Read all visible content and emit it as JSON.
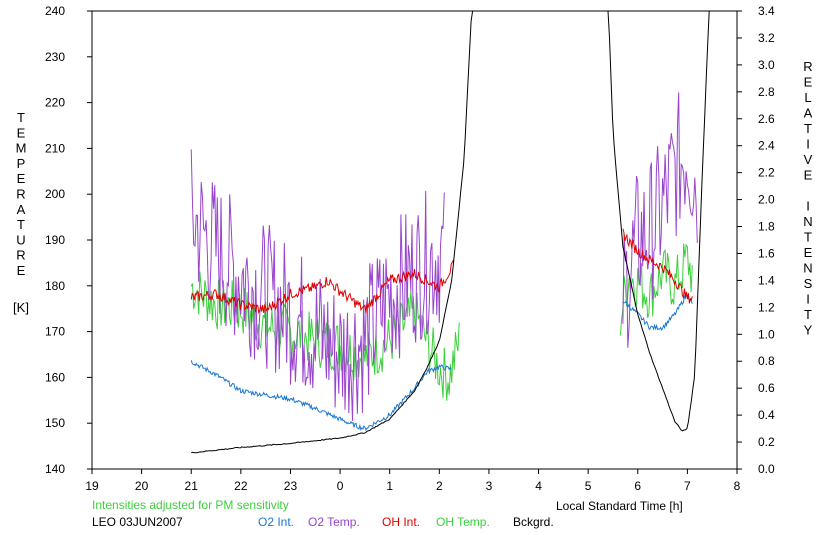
{
  "chart_data": {
    "type": "line",
    "xlabel": "Local Standard Time [h]",
    "x_ticks": [
      "19",
      "20",
      "21",
      "22",
      "23",
      "0",
      "1",
      "2",
      "3",
      "4",
      "5",
      "6",
      "7",
      "8"
    ],
    "x_range": [
      19,
      32
    ],
    "left_axis": {
      "label_letters": [
        "T",
        "E",
        "M",
        "P",
        "E",
        "R",
        "A",
        "T",
        "U",
        "R",
        "E"
      ],
      "unit": "[K]",
      "range": [
        140,
        240
      ],
      "ticks": [
        "140",
        "150",
        "160",
        "170",
        "180",
        "190",
        "200",
        "210",
        "220",
        "230",
        "240"
      ]
    },
    "right_axis": {
      "label_letters": [
        "R",
        "E",
        "L",
        "A",
        "T",
        "I",
        "V",
        "E",
        "",
        "I",
        "N",
        "T",
        "E",
        "N",
        "S",
        "I",
        "T",
        "Y"
      ],
      "range": [
        0,
        3.4
      ],
      "ticks": [
        "0.0",
        "0.2",
        "0.4",
        "0.6",
        "0.8",
        "1.0",
        "1.2",
        "1.4",
        "1.6",
        "1.8",
        "2.0",
        "2.2",
        "2.4",
        "2.6",
        "2.8",
        "3.0",
        "3.2",
        "3.4"
      ]
    },
    "note": "Intensities adjusted for PM sensitivity",
    "station": "LEO 03JUN2007",
    "series": [
      {
        "name": "O2 Int.",
        "color": "#1a78d2",
        "axis": "right",
        "segments": [
          {
            "x": [
              21.0,
              21.5,
              22.0,
              22.5,
              23.0,
              23.5,
              24.0,
              24.25,
              24.5,
              25.0,
              25.5,
              25.75,
              26.0,
              26.25
            ],
            "y": [
              0.8,
              0.7,
              0.58,
              0.55,
              0.52,
              0.45,
              0.37,
              0.33,
              0.3,
              0.4,
              0.6,
              0.72,
              0.76,
              0.74
            ]
          },
          {
            "x": [
              29.7,
              30.0,
              30.25,
              30.5,
              30.75,
              31.0,
              31.1
            ],
            "y": [
              1.25,
              1.15,
              1.05,
              1.05,
              1.15,
              1.3,
              1.22
            ]
          }
        ]
      },
      {
        "name": "O2 Temp.",
        "color": "#9944cc",
        "axis": "left",
        "segments": [
          {
            "x": [
              21.0,
              21.5,
              22.0,
              22.5,
              23.0,
              23.5,
              24.0,
              24.5,
              25.0,
              25.5,
              26.0,
              26.1
            ],
            "y": [
              195,
              188,
              182,
              178,
              174,
              170,
              165,
              168,
              178,
              183,
              187,
              186
            ]
          },
          {
            "x": [
              29.7,
              30.0,
              30.25,
              30.5,
              30.75,
              31.0,
              31.2
            ],
            "y": [
              178,
              190,
              192,
              197,
              205,
              210,
              202
            ]
          }
        ]
      },
      {
        "name": "OH Int.",
        "color": "#dd0000",
        "axis": "right",
        "segments": [
          {
            "x": [
              21.0,
              21.5,
              22.0,
              22.5,
              23.0,
              23.5,
              23.75,
              24.0,
              24.5,
              25.0,
              25.5,
              26.0,
              26.3
            ],
            "y": [
              1.27,
              1.3,
              1.22,
              1.18,
              1.3,
              1.35,
              1.4,
              1.32,
              1.18,
              1.4,
              1.45,
              1.35,
              1.52
            ]
          },
          {
            "x": [
              29.7,
              29.8,
              30.0,
              30.25,
              30.5,
              30.75,
              31.0,
              31.1
            ],
            "y": [
              1.75,
              1.7,
              1.62,
              1.55,
              1.5,
              1.4,
              1.27,
              1.27
            ]
          }
        ]
      },
      {
        "name": "OH Temp.",
        "color": "#3ccf3c",
        "axis": "left",
        "segments": [
          {
            "x": [
              21.0,
              21.5,
              22.0,
              22.5,
              23.0,
              23.5,
              24.0,
              24.5,
              25.0,
              25.5,
              26.0,
              26.2,
              26.4
            ],
            "y": [
              180,
              176,
              175,
              171,
              170,
              168,
              167,
              164,
              168,
              174,
              162,
              160,
              168
            ]
          },
          {
            "x": [
              29.65,
              29.8,
              30.0,
              30.25,
              30.5,
              30.75,
              31.0,
              31.1
            ],
            "y": [
              173,
              182,
              181,
              178,
              183,
              180,
              186,
              182
            ]
          }
        ]
      },
      {
        "name": "Bckgrd.",
        "color": "#000000",
        "axis": "right",
        "segments": [
          {
            "x": [
              21.0,
              22.0,
              23.0,
              24.0,
              24.5,
              25.0,
              25.5,
              25.75,
              26.0,
              26.25,
              26.5,
              26.65,
              26.7
            ],
            "y": [
              0.12,
              0.16,
              0.19,
              0.23,
              0.27,
              0.37,
              0.58,
              0.75,
              0.95,
              1.4,
              2.3,
              3.4,
              3.5
            ]
          },
          {
            "x": [
              29.4,
              29.5,
              29.7,
              30.0,
              30.25,
              30.5,
              30.75,
              30.9,
              31.0,
              31.15,
              31.3,
              31.45
            ],
            "y": [
              3.5,
              2.5,
              1.65,
              1.15,
              0.85,
              0.6,
              0.35,
              0.28,
              0.3,
              0.7,
              2.2,
              3.5
            ]
          }
        ]
      }
    ]
  }
}
